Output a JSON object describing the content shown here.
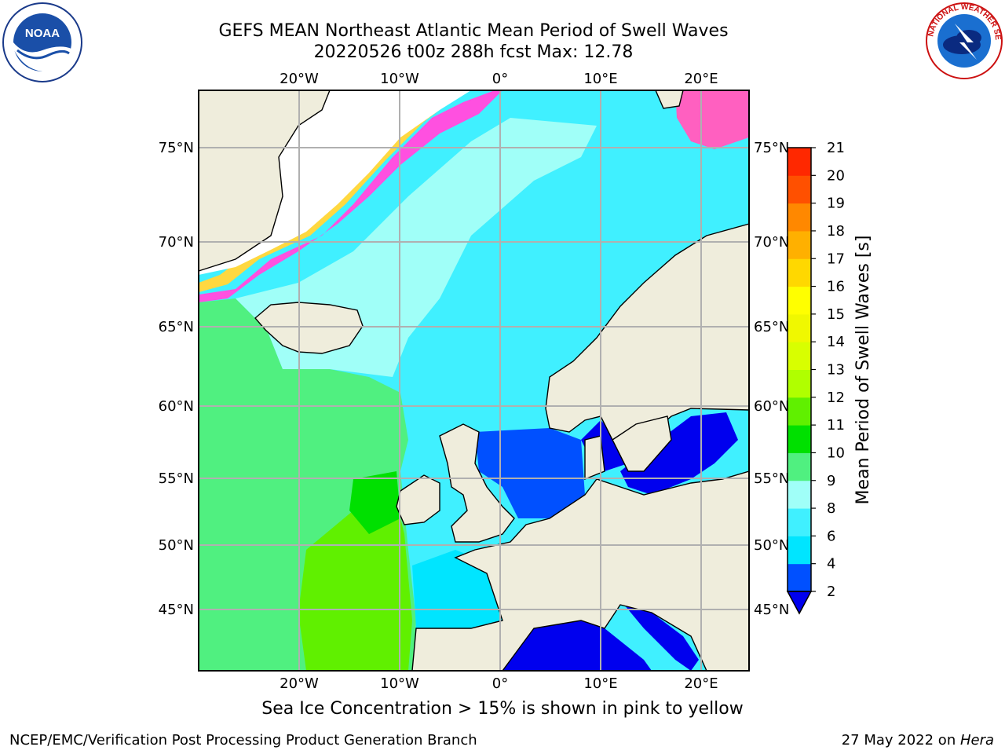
{
  "title_line1": "GEFS MEAN Northeast Atlantic Mean Period of Swell Waves",
  "title_line2": "20220526 t00z 288h fcst   Max: 12.78",
  "lon_labels": [
    "20°W",
    "10°W",
    "0°",
    "10°E",
    "20°E"
  ],
  "lat_labels": [
    "75°N",
    "70°N",
    "65°N",
    "60°N",
    "55°N",
    "50°N",
    "45°N"
  ],
  "colorbar": {
    "label": "Mean Period of Swell Waves [s]",
    "ticks": [
      "2",
      "4",
      "6",
      "8",
      "9",
      "10",
      "11",
      "12",
      "13",
      "14",
      "15",
      "16",
      "17",
      "18",
      "19",
      "20",
      "21"
    ],
    "colors": [
      "#0050ff",
      "#00e5ff",
      "#40f0ff",
      "#a0fff8",
      "#50f080",
      "#00e000",
      "#60f000",
      "#b0ff00",
      "#d8ff00",
      "#f0f800",
      "#ffff00",
      "#ffd800",
      "#ffb000",
      "#ff8800",
      "#ff5000",
      "#ff2800"
    ],
    "extend_color": "#0000ee"
  },
  "caption": "Sea Ice Concentration > 15% is shown in pink to yellow",
  "footer_left": "NCEP/EMC/Verification Post Processing Product Generation Branch",
  "footer_right_prefix": "27 May 2022 on ",
  "footer_right_host": "Hera",
  "logos": {
    "noaa_text": "NOAA",
    "nws_text": "NATIONAL WEATHER SERVICE"
  },
  "colors": {
    "land": "#efeddc",
    "grid": "#b0b0b0",
    "ocean_cyan": "#40f0ff",
    "ocean_light": "#a0fff8",
    "ocean_green": "#50f080",
    "ocean_bright_green": "#60f000",
    "ocean_blue": "#0050ff",
    "ocean_deep": "#0000ee",
    "ice_pink": "#ff50e0",
    "ice_yellow": "#ffd840"
  }
}
